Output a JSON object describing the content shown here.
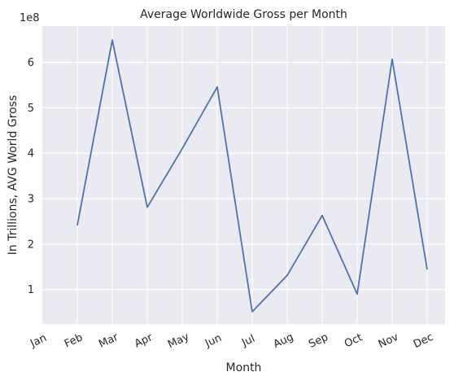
{
  "chart_data": {
    "type": "line",
    "title": "Average Worldwide Gross per Month",
    "xlabel": "Month",
    "ylabel": "In Trillions, AVG World Gross",
    "y_offset_label": "1e8",
    "categories": [
      "Jan",
      "Feb",
      "Mar",
      "Apr",
      "May",
      "Jun",
      "Jul",
      "Aug",
      "Sep",
      "Oct",
      "Nov",
      "Dec"
    ],
    "y_ticks": [
      1,
      2,
      3,
      4,
      5,
      6
    ],
    "y_tick_labels": [
      "1",
      "2",
      "3",
      "4",
      "5",
      "6"
    ],
    "ylim": [
      0.24,
      6.8
    ],
    "grid": true,
    "series": [
      {
        "color": "#4C72B0",
        "points": [
          {
            "x": "Feb",
            "y": 2.41
          },
          {
            "x": "Mar",
            "y": 6.49
          },
          {
            "x": "Apr",
            "y": 2.81
          },
          {
            "x": "May",
            "y": 4.1
          },
          {
            "x": "Jun",
            "y": 5.46
          },
          {
            "x": "Jul",
            "y": 0.51
          },
          {
            "x": "Aug",
            "y": 1.31
          },
          {
            "x": "Sep",
            "y": 2.63
          },
          {
            "x": "Oct",
            "y": 0.9
          },
          {
            "x": "Nov",
            "y": 6.07
          },
          {
            "x": "Dec",
            "y": 1.44
          }
        ]
      }
    ]
  },
  "colors": {
    "plot_background": "#EAEAF2",
    "grid": "#FFFFFF",
    "line": "#4C72B0",
    "text": "#262626"
  }
}
